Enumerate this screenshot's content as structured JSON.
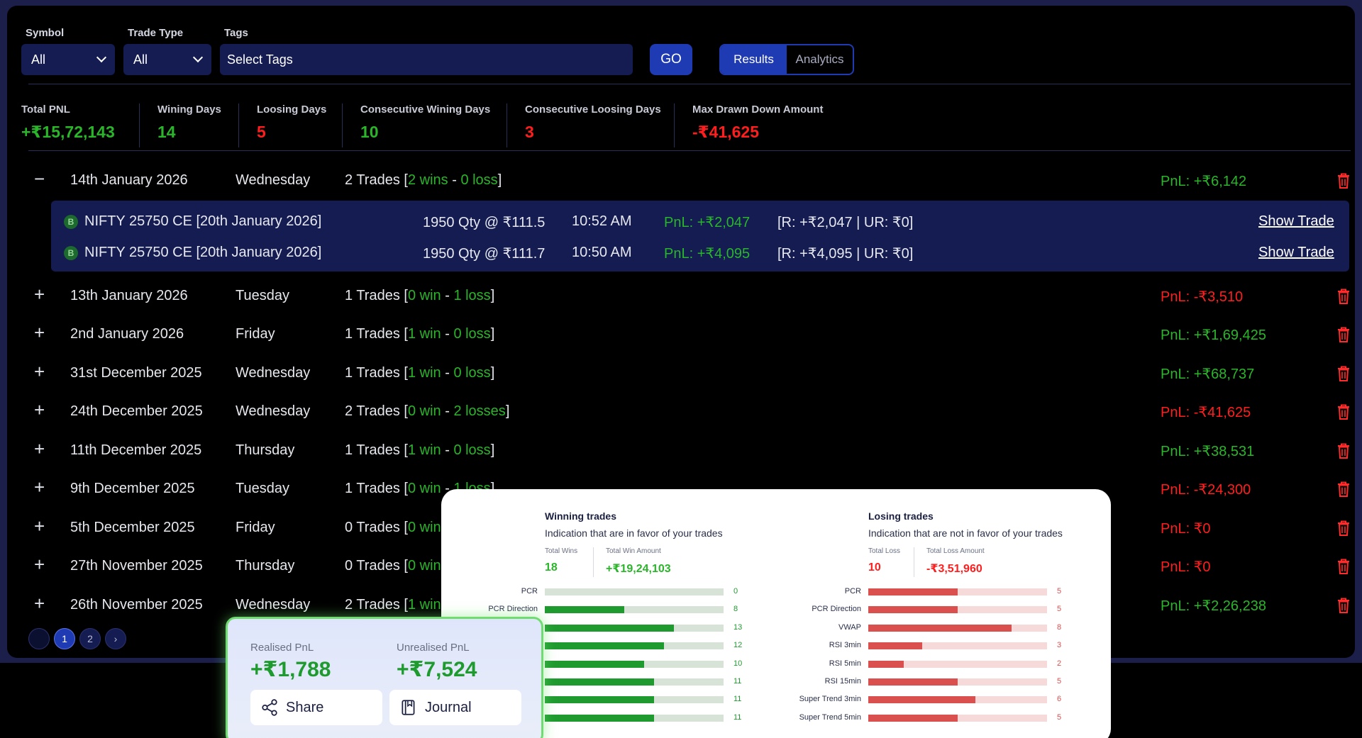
{
  "filters": {
    "symbol_label": "Symbol",
    "symbol_value": "All",
    "trade_type_label": "Trade Type",
    "trade_type_value": "All",
    "tags_label": "Tags",
    "tags_placeholder": "Select Tags",
    "go_label": "GO",
    "tabs": [
      "Results",
      "Analytics"
    ],
    "active_tab": "Results"
  },
  "stats": [
    {
      "label": "Total PNL",
      "value": "+₹15,72,143",
      "color": "green"
    },
    {
      "label": "Wining Days",
      "value": "14",
      "color": "green"
    },
    {
      "label": "Loosing Days",
      "value": "5",
      "color": "red"
    },
    {
      "label": "Consecutive Wining Days",
      "value": "10",
      "color": "green"
    },
    {
      "label": "Consecutive Loosing Days",
      "value": "3",
      "color": "red"
    },
    {
      "label": "Max Drawn Down Amount",
      "value": "-₹41,625",
      "color": "red"
    }
  ],
  "days": [
    {
      "toggle": "−",
      "date": "14th January 2026",
      "weekday": "Wednesday",
      "trades": "2 Trades",
      "open": "[",
      "wins": "2 wins",
      "sep": " - ",
      "losses": "0 loss",
      "close": "]",
      "pnl": "PnL: +₹6,142",
      "pnl_color": "green"
    },
    {
      "toggle": "+",
      "date": "13th January 2026",
      "weekday": "Tuesday",
      "trades": "1 Trades",
      "open": "[",
      "wins": "0 win",
      "sep": " - ",
      "losses": "1 loss",
      "close": "]",
      "pnl": "PnL: -₹3,510",
      "pnl_color": "red"
    },
    {
      "toggle": "+",
      "date": "2nd January 2026",
      "weekday": "Friday",
      "trades": "1 Trades",
      "open": "[",
      "wins": "1 win",
      "sep": " - ",
      "losses": "0 loss",
      "close": "]",
      "pnl": "PnL: +₹1,69,425",
      "pnl_color": "green"
    },
    {
      "toggle": "+",
      "date": "31st December 2025",
      "weekday": "Wednesday",
      "trades": "1 Trades",
      "open": "[",
      "wins": "1 win",
      "sep": " - ",
      "losses": "0 loss",
      "close": "]",
      "pnl": "PnL: +₹68,737",
      "pnl_color": "green"
    },
    {
      "toggle": "+",
      "date": "24th December 2025",
      "weekday": "Wednesday",
      "trades": "2 Trades",
      "open": "[",
      "wins": "0 win",
      "sep": " - ",
      "losses": "2 losses",
      "close": "]",
      "pnl": "PnL: -₹41,625",
      "pnl_color": "red"
    },
    {
      "toggle": "+",
      "date": "11th December 2025",
      "weekday": "Thursday",
      "trades": "1 Trades",
      "open": "[",
      "wins": "1 win",
      "sep": " - ",
      "losses": "0 loss",
      "close": "]",
      "pnl": "PnL: +₹38,531",
      "pnl_color": "green"
    },
    {
      "toggle": "+",
      "date": "9th December 2025",
      "weekday": "Tuesday",
      "trades": "1 Trades",
      "open": "[",
      "wins": "0 win",
      "sep": " - ",
      "losses": "1 loss",
      "close": "]",
      "pnl": "PnL: -₹24,300",
      "pnl_color": "red"
    },
    {
      "toggle": "+",
      "date": "5th December 2025",
      "weekday": "Friday",
      "trades": "0 Trades",
      "open": "[",
      "wins": "0 win",
      "sep": "",
      "losses": "",
      "close": "",
      "pnl": "PnL: ₹0",
      "pnl_color": "red"
    },
    {
      "toggle": "+",
      "date": "27th November 2025",
      "weekday": "Thursday",
      "trades": "0 Trades",
      "open": "[",
      "wins": "0 win",
      "sep": "",
      "losses": "",
      "close": "",
      "pnl": "PnL: ₹0",
      "pnl_color": "red"
    },
    {
      "toggle": "+",
      "date": "26th November 2025",
      "weekday": "Wednesday",
      "trades": "2 Trades",
      "open": "[",
      "wins": "1 win",
      "sep": "",
      "losses": "",
      "close": "",
      "pnl": "PnL: +₹2,26,238",
      "pnl_color": "green"
    }
  ],
  "trades": [
    {
      "badge": "B",
      "instrument": "NIFTY 25750 CE [20th January 2026]",
      "qty": "1950 Qty @ ₹111.5",
      "time": "10:52 AM",
      "pnl": "PnL: +₹2,047",
      "realised": "[R: +₹2,047 | UR: ₹0]",
      "action": "Show Trade"
    },
    {
      "badge": "B",
      "instrument": "NIFTY 25750 CE [20th January 2026]",
      "qty": "1950 Qty @ ₹111.7",
      "time": "10:50 AM",
      "pnl": "PnL: +₹4,095",
      "realised": "[R: +₹4,095 | UR: ₹0]",
      "action": "Show Trade"
    }
  ],
  "pagination": {
    "pages": [
      "",
      "1",
      "2",
      "›"
    ],
    "active": "1"
  },
  "analytics": {
    "winning": {
      "title": "Winning trades",
      "subtitle": "Indication that are in favor of your trades",
      "total_label": "Total Wins",
      "total_value": "18",
      "amount_label": "Total Win Amount",
      "amount_value": "+₹19,24,103",
      "bar_max": 18,
      "bars": [
        {
          "label": "PCR",
          "value": 0
        },
        {
          "label": "PCR Direction",
          "value": 8
        },
        {
          "label": "",
          "value": 13
        },
        {
          "label": "",
          "value": 12
        },
        {
          "label": "",
          "value": 10
        },
        {
          "label": "",
          "value": 11
        },
        {
          "label": "",
          "value": 11
        },
        {
          "label": "",
          "value": 11
        }
      ]
    },
    "losing": {
      "title": "Losing trades",
      "subtitle": "Indication that are not in favor of your trades",
      "total_label": "Total Loss",
      "total_value": "10",
      "amount_label": "Total Loss Amount",
      "amount_value": "-₹3,51,960",
      "bar_max": 10,
      "bars": [
        {
          "label": "PCR",
          "value": 5
        },
        {
          "label": "PCR Direction",
          "value": 5
        },
        {
          "label": "VWAP",
          "value": 8
        },
        {
          "label": "RSI 3min",
          "value": 3
        },
        {
          "label": "RSI 5min",
          "value": 2
        },
        {
          "label": "RSI 15min",
          "value": 5
        },
        {
          "label": "Super Trend 3min",
          "value": 6
        },
        {
          "label": "Super Trend 5min",
          "value": 5
        }
      ]
    }
  },
  "pnl_card": {
    "realised_label": "Realised PnL",
    "realised_value": "+₹1,788",
    "unrealised_label": "Unrealised PnL",
    "unrealised_value": "+₹7,524",
    "share_label": "Share",
    "journal_label": "Journal"
  },
  "colors": {
    "green": "#2ab52a",
    "red": "#ff1e1e",
    "accent": "#1e3bb3"
  }
}
